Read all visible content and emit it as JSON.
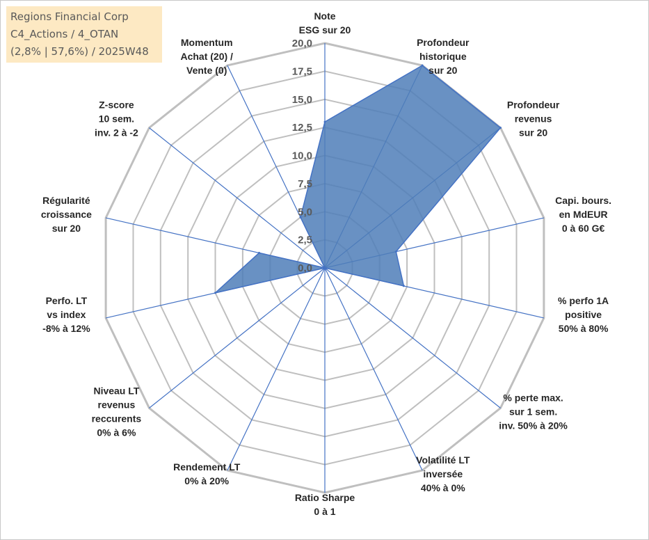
{
  "title_lines": [
    "Regions Financial Corp",
    "C4_Actions / 4_OTAN",
    "(2,8% | 57,6%) / 2025W48"
  ],
  "colors": {
    "fill": "#4f7eb8",
    "stroke": "#4472c4",
    "grid": "#bfbfbf",
    "spoke": "#4472c4",
    "title_bg": "#fde9c3"
  },
  "chart_data": {
    "type": "radar",
    "range": [
      0,
      20
    ],
    "ticks": [
      "0,0",
      "2,5",
      "5,0",
      "7,5",
      "10,0",
      "12,5",
      "15,0",
      "17,5",
      "20,0"
    ],
    "grid": true,
    "axes": [
      {
        "label": [
          "Note",
          "ESG sur 20"
        ],
        "value": 13.0
      },
      {
        "label": [
          "Profondeur",
          "historique",
          "sur 20"
        ],
        "value": 20.0
      },
      {
        "label": [
          "Profondeur",
          "revenus",
          "sur 20"
        ],
        "value": 20.0
      },
      {
        "label": [
          "Capi. bours.",
          "en MdEUR",
          "0 à 60 G€"
        ],
        "value": 6.5
      },
      {
        "label": [
          "% perfo 1A",
          "positive",
          "50% à 80%"
        ],
        "value": 7.2
      },
      {
        "label": [
          "% perte max.",
          "sur 1 sem.",
          "inv. 50% à 20%"
        ],
        "value": 0.0
      },
      {
        "label": [
          "Volatilité LT",
          "inversée",
          "40% à 0%"
        ],
        "value": 0.0
      },
      {
        "label": [
          "Ratio Sharpe",
          "0 à 1"
        ],
        "value": 0.0
      },
      {
        "label": [
          "Rendement LT",
          "0% à 20%"
        ],
        "value": 0.0
      },
      {
        "label": [
          "Niveau LT",
          "revenus",
          "reccurents",
          "0% à 6%"
        ],
        "value": 0.0
      },
      {
        "label": [
          "Perfo. LT",
          "vs index",
          "-8% à 12%"
        ],
        "value": 10.0
      },
      {
        "label": [
          "Régularité",
          "croissance",
          "sur 20"
        ],
        "value": 6.0
      },
      {
        "label": [
          "Z-score",
          "10 sem.",
          "inv. 2 à -2"
        ],
        "value": 0.0
      },
      {
        "label": [
          "Momentum",
          "Achat (20) /",
          "Vente (0)"
        ],
        "value": 5.0
      }
    ]
  }
}
